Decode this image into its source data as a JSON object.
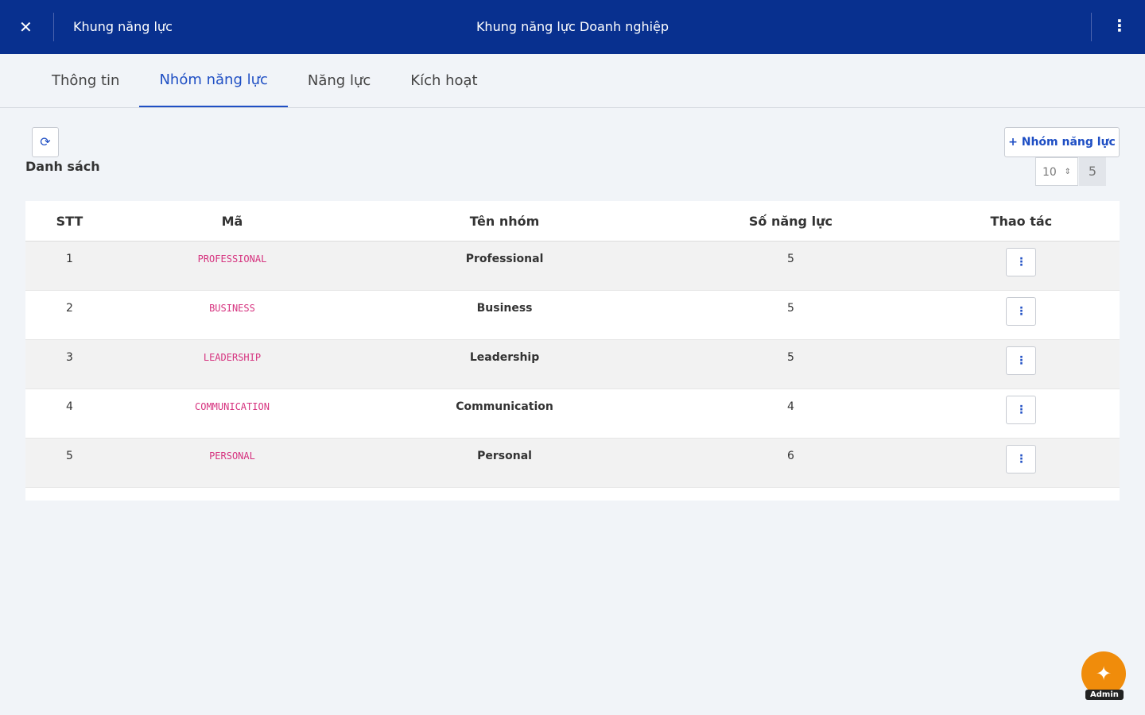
{
  "header": {
    "breadcrumb": "Khung năng lực",
    "title": "Khung năng lực Doanh nghiệp"
  },
  "tabs": [
    "Thông tin",
    "Nhóm năng lực",
    "Năng lực",
    "Kích hoạt"
  ],
  "toolbar": {
    "list_label": "Danh sách",
    "add_button": "Nhóm năng lực",
    "page_size": "10",
    "total": "5"
  },
  "table": {
    "headers": [
      "STT",
      "Mã",
      "Tên nhóm",
      "Số năng lực",
      "Thao tác"
    ],
    "rows": [
      [
        "1",
        "PROFESSIONAL",
        "Professional",
        "5"
      ],
      [
        "2",
        "BUSINESS",
        "Business",
        "5"
      ],
      [
        "3",
        "LEADERSHIP",
        "Leadership",
        "5"
      ],
      [
        "4",
        "COMMUNICATION",
        "Communication",
        "4"
      ],
      [
        "5",
        "PERSONAL",
        "Personal",
        "6"
      ]
    ]
  },
  "fab": {
    "label": "Admin"
  }
}
